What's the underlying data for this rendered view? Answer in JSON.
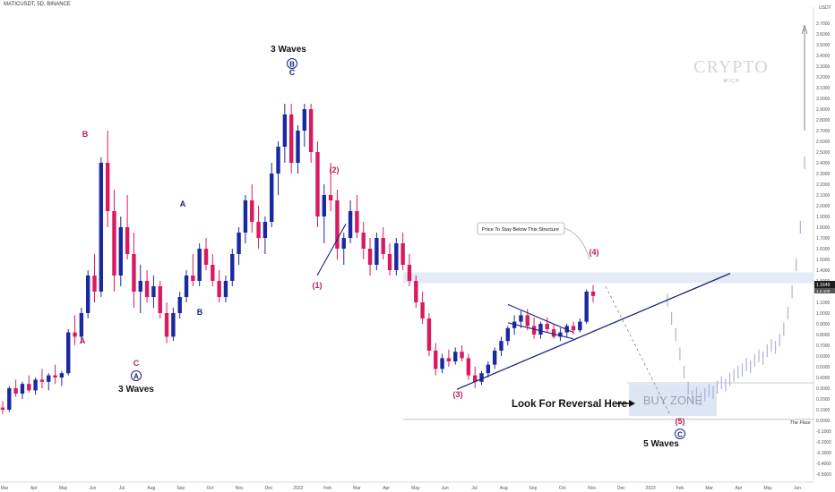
{
  "symbol": "MATICUSDT, 5D, BINANCE",
  "currency": "USDT",
  "watermark": {
    "main": "CRYPTO",
    "sub": "W I C K"
  },
  "colors": {
    "up": "#1a2a9e",
    "down": "#d81b60",
    "wave": "#1a237e",
    "wave_red": "#c2185b",
    "zone": "#dde6f5"
  },
  "annotations": {
    "three_waves_top": "3 Waves",
    "three_waves_left": "3 Waves",
    "five_waves": "5 Waves",
    "reversal": "Look For Reversal Here",
    "buy_zone": "BUY ZONE",
    "floor": "The Floor",
    "structure_note": "Price To Stay Below This Structure",
    "labels": {
      "A_circ": "A",
      "B_circ": "B",
      "C_circ": "C",
      "C_top": "C",
      "A_red": "A",
      "B_red": "B",
      "C_red": "C",
      "A_navy": "A",
      "B_navy": "B",
      "w1": "(1)",
      "w2": "(2)",
      "w3": "(3)",
      "w4": "(4)",
      "w5": "(5)"
    }
  },
  "price_badges": [
    "1.1649",
    "1.2-100"
  ],
  "chart_data": {
    "type": "candlestick",
    "title": "MATICUSDT, 5D, BINANCE",
    "ylabel": "USDT",
    "ylim": [
      -0.55,
      3.85
    ],
    "y_ticks": [
      "3.7000",
      "3.6000",
      "3.5000",
      "3.4000",
      "3.3000",
      "3.2000",
      "3.1000",
      "3.0000",
      "2.9000",
      "2.8000",
      "2.7000",
      "2.6000",
      "2.5000",
      "2.4000",
      "2.3000",
      "2.2000",
      "2.1000",
      "2.0000",
      "1.9000",
      "1.8000",
      "1.7000",
      "1.6000",
      "1.5000",
      "1.4000",
      "1.3000",
      "1.2000",
      "1.1000",
      "1.0000",
      "0.9000",
      "0.8000",
      "0.7000",
      "0.6000",
      "0.5000",
      "0.4000",
      "0.3000",
      "0.2000",
      "0.1000",
      "0.0000",
      "-0.1000",
      "-0.2000",
      "-0.3000",
      "-0.4000",
      "-0.5000"
    ],
    "x_ticks": [
      "Mar",
      "Apr",
      "May",
      "Jun",
      "Jul",
      "Aug",
      "Sep",
      "Oct",
      "Nov",
      "Dec",
      "2022",
      "Feb",
      "Mar",
      "Apr",
      "May",
      "Jun",
      "Jul",
      "Aug",
      "Sep",
      "Oct",
      "Nov",
      "Dec",
      "2023",
      "Feb",
      "Mar",
      "Apr",
      "May",
      "Jun"
    ],
    "candles": [
      {
        "o": 0.12,
        "h": 0.18,
        "l": 0.06,
        "c": 0.1
      },
      {
        "o": 0.1,
        "h": 0.32,
        "l": 0.08,
        "c": 0.3
      },
      {
        "o": 0.3,
        "h": 0.38,
        "l": 0.22,
        "c": 0.25
      },
      {
        "o": 0.25,
        "h": 0.36,
        "l": 0.2,
        "c": 0.34
      },
      {
        "o": 0.34,
        "h": 0.42,
        "l": 0.26,
        "c": 0.28
      },
      {
        "o": 0.28,
        "h": 0.4,
        "l": 0.24,
        "c": 0.38
      },
      {
        "o": 0.38,
        "h": 0.48,
        "l": 0.3,
        "c": 0.36
      },
      {
        "o": 0.36,
        "h": 0.44,
        "l": 0.28,
        "c": 0.42
      },
      {
        "o": 0.42,
        "h": 0.52,
        "l": 0.34,
        "c": 0.4
      },
      {
        "o": 0.4,
        "h": 0.46,
        "l": 0.32,
        "c": 0.44
      },
      {
        "o": 0.44,
        "h": 0.85,
        "l": 0.42,
        "c": 0.82
      },
      {
        "o": 0.82,
        "h": 0.98,
        "l": 0.7,
        "c": 0.78
      },
      {
        "o": 0.78,
        "h": 1.05,
        "l": 0.72,
        "c": 1.0
      },
      {
        "o": 1.0,
        "h": 1.4,
        "l": 0.95,
        "c": 1.35
      },
      {
        "o": 1.35,
        "h": 1.55,
        "l": 1.1,
        "c": 1.2
      },
      {
        "o": 1.2,
        "h": 2.45,
        "l": 1.15,
        "c": 2.4
      },
      {
        "o": 2.4,
        "h": 2.7,
        "l": 1.8,
        "c": 1.95
      },
      {
        "o": 1.95,
        "h": 2.15,
        "l": 1.2,
        "c": 1.35
      },
      {
        "o": 1.35,
        "h": 1.9,
        "l": 1.25,
        "c": 1.8
      },
      {
        "o": 1.8,
        "h": 2.1,
        "l": 1.5,
        "c": 1.55
      },
      {
        "o": 1.55,
        "h": 1.75,
        "l": 1.05,
        "c": 1.2
      },
      {
        "o": 1.2,
        "h": 1.45,
        "l": 1.0,
        "c": 1.3
      },
      {
        "o": 1.3,
        "h": 1.4,
        "l": 1.1,
        "c": 1.15
      },
      {
        "o": 1.15,
        "h": 1.35,
        "l": 1.05,
        "c": 1.25
      },
      {
        "o": 1.25,
        "h": 1.3,
        "l": 0.95,
        "c": 1.0
      },
      {
        "o": 1.0,
        "h": 1.1,
        "l": 0.72,
        "c": 0.78
      },
      {
        "o": 0.78,
        "h": 1.05,
        "l": 0.74,
        "c": 1.0
      },
      {
        "o": 1.0,
        "h": 1.2,
        "l": 0.95,
        "c": 1.15
      },
      {
        "o": 1.15,
        "h": 1.4,
        "l": 1.1,
        "c": 1.35
      },
      {
        "o": 1.35,
        "h": 1.55,
        "l": 1.25,
        "c": 1.3
      },
      {
        "o": 1.3,
        "h": 1.65,
        "l": 1.25,
        "c": 1.6
      },
      {
        "o": 1.6,
        "h": 1.7,
        "l": 1.4,
        "c": 1.45
      },
      {
        "o": 1.45,
        "h": 1.55,
        "l": 1.25,
        "c": 1.3
      },
      {
        "o": 1.3,
        "h": 1.4,
        "l": 1.1,
        "c": 1.15
      },
      {
        "o": 1.15,
        "h": 1.35,
        "l": 1.1,
        "c": 1.3
      },
      {
        "o": 1.3,
        "h": 1.6,
        "l": 1.25,
        "c": 1.55
      },
      {
        "o": 1.55,
        "h": 1.8,
        "l": 1.45,
        "c": 1.75
      },
      {
        "o": 1.75,
        "h": 2.1,
        "l": 1.65,
        "c": 2.05
      },
      {
        "o": 2.05,
        "h": 2.2,
        "l": 1.75,
        "c": 1.85
      },
      {
        "o": 1.85,
        "h": 2.0,
        "l": 1.6,
        "c": 1.7
      },
      {
        "o": 1.7,
        "h": 1.9,
        "l": 1.55,
        "c": 1.85
      },
      {
        "o": 1.85,
        "h": 2.4,
        "l": 1.8,
        "c": 2.3
      },
      {
        "o": 2.3,
        "h": 2.6,
        "l": 2.1,
        "c": 2.55
      },
      {
        "o": 2.55,
        "h": 2.95,
        "l": 2.4,
        "c": 2.85
      },
      {
        "o": 2.85,
        "h": 2.95,
        "l": 2.3,
        "c": 2.4
      },
      {
        "o": 2.4,
        "h": 2.75,
        "l": 2.3,
        "c": 2.7
      },
      {
        "o": 2.7,
        "h": 2.95,
        "l": 2.55,
        "c": 2.9
      },
      {
        "o": 2.9,
        "h": 2.95,
        "l": 2.4,
        "c": 2.5
      },
      {
        "o": 2.5,
        "h": 2.6,
        "l": 1.8,
        "c": 1.9
      },
      {
        "o": 1.9,
        "h": 2.2,
        "l": 1.65,
        "c": 2.1
      },
      {
        "o": 2.1,
        "h": 2.4,
        "l": 1.95,
        "c": 2.05
      },
      {
        "o": 2.05,
        "h": 2.15,
        "l": 1.5,
        "c": 1.6
      },
      {
        "o": 1.6,
        "h": 1.75,
        "l": 1.45,
        "c": 1.7
      },
      {
        "o": 1.7,
        "h": 2.05,
        "l": 1.65,
        "c": 1.95
      },
      {
        "o": 1.95,
        "h": 2.1,
        "l": 1.7,
        "c": 1.75
      },
      {
        "o": 1.75,
        "h": 1.85,
        "l": 1.5,
        "c": 1.6
      },
      {
        "o": 1.6,
        "h": 1.7,
        "l": 1.35,
        "c": 1.45
      },
      {
        "o": 1.45,
        "h": 1.75,
        "l": 1.4,
        "c": 1.7
      },
      {
        "o": 1.7,
        "h": 1.8,
        "l": 1.5,
        "c": 1.55
      },
      {
        "o": 1.55,
        "h": 1.65,
        "l": 1.35,
        "c": 1.4
      },
      {
        "o": 1.4,
        "h": 1.7,
        "l": 1.35,
        "c": 1.65
      },
      {
        "o": 1.65,
        "h": 1.75,
        "l": 1.4,
        "c": 1.45
      },
      {
        "o": 1.45,
        "h": 1.55,
        "l": 1.25,
        "c": 1.3
      },
      {
        "o": 1.3,
        "h": 1.35,
        "l": 1.05,
        "c": 1.1
      },
      {
        "o": 1.1,
        "h": 1.2,
        "l": 0.9,
        "c": 0.95
      },
      {
        "o": 0.95,
        "h": 1.0,
        "l": 0.6,
        "c": 0.65
      },
      {
        "o": 0.65,
        "h": 0.72,
        "l": 0.42,
        "c": 0.48
      },
      {
        "o": 0.48,
        "h": 0.62,
        "l": 0.44,
        "c": 0.58
      },
      {
        "o": 0.58,
        "h": 0.66,
        "l": 0.5,
        "c": 0.55
      },
      {
        "o": 0.55,
        "h": 0.68,
        "l": 0.52,
        "c": 0.64
      },
      {
        "o": 0.64,
        "h": 0.7,
        "l": 0.55,
        "c": 0.58
      },
      {
        "o": 0.58,
        "h": 0.62,
        "l": 0.38,
        "c": 0.42
      },
      {
        "o": 0.42,
        "h": 0.5,
        "l": 0.3,
        "c": 0.36
      },
      {
        "o": 0.36,
        "h": 0.46,
        "l": 0.33,
        "c": 0.44
      },
      {
        "o": 0.44,
        "h": 0.55,
        "l": 0.4,
        "c": 0.52
      },
      {
        "o": 0.52,
        "h": 0.68,
        "l": 0.48,
        "c": 0.65
      },
      {
        "o": 0.65,
        "h": 0.78,
        "l": 0.6,
        "c": 0.74
      },
      {
        "o": 0.74,
        "h": 0.88,
        "l": 0.7,
        "c": 0.86
      },
      {
        "o": 0.86,
        "h": 0.98,
        "l": 0.8,
        "c": 0.92
      },
      {
        "o": 0.92,
        "h": 1.02,
        "l": 0.86,
        "c": 0.98
      },
      {
        "o": 0.98,
        "h": 1.04,
        "l": 0.84,
        "c": 0.88
      },
      {
        "o": 0.88,
        "h": 0.96,
        "l": 0.76,
        "c": 0.8
      },
      {
        "o": 0.8,
        "h": 0.92,
        "l": 0.76,
        "c": 0.9
      },
      {
        "o": 0.9,
        "h": 0.96,
        "l": 0.82,
        "c": 0.85
      },
      {
        "o": 0.85,
        "h": 0.9,
        "l": 0.76,
        "c": 0.78
      },
      {
        "o": 0.78,
        "h": 0.86,
        "l": 0.74,
        "c": 0.82
      },
      {
        "o": 0.82,
        "h": 0.9,
        "l": 0.78,
        "c": 0.88
      },
      {
        "o": 0.88,
        "h": 0.92,
        "l": 0.8,
        "c": 0.84
      },
      {
        "o": 0.84,
        "h": 0.95,
        "l": 0.82,
        "c": 0.92
      },
      {
        "o": 0.92,
        "h": 1.22,
        "l": 0.9,
        "c": 1.2
      },
      {
        "o": 1.2,
        "h": 1.26,
        "l": 1.1,
        "c": 1.16
      }
    ],
    "projection": [
      1.12,
      0.95,
      0.8,
      0.62,
      0.45,
      0.3,
      0.22,
      0.25,
      0.2,
      0.24,
      0.28,
      0.26,
      0.31,
      0.35,
      0.33,
      0.38,
      0.42,
      0.45,
      0.47,
      0.52,
      0.5,
      0.56,
      0.6,
      0.58,
      0.65,
      0.7,
      0.68,
      0.75,
      0.85,
      1.0,
      1.2,
      1.45,
      1.8,
      2.4
    ]
  }
}
